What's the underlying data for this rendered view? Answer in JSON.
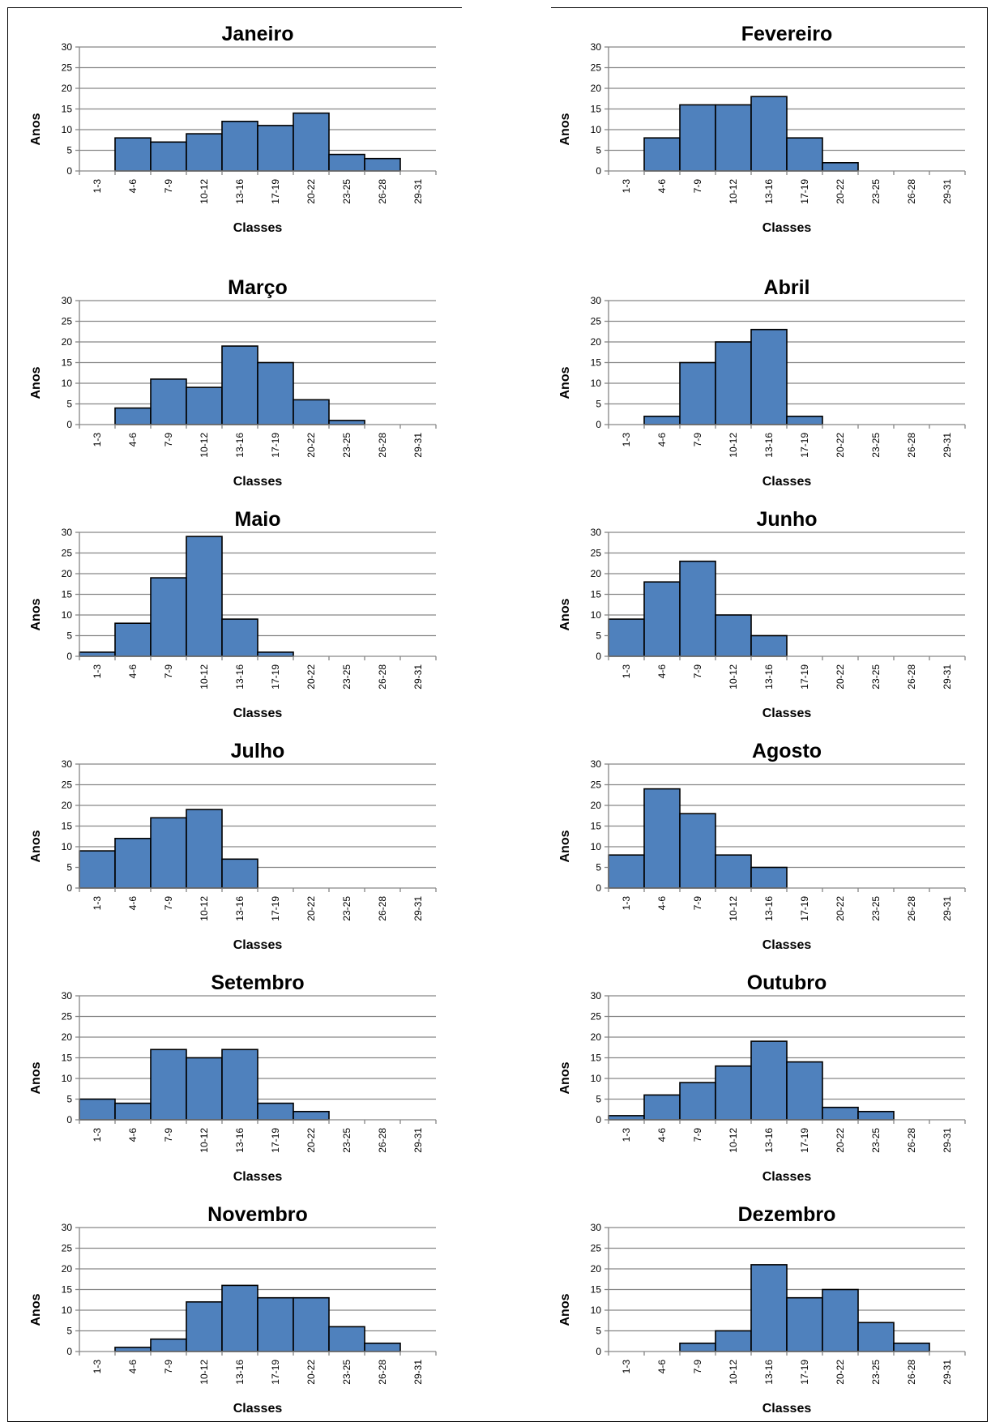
{
  "chart_data": [
    {
      "type": "bar",
      "title": "Janeiro",
      "xlabel": "Classes",
      "ylabel": "Anos",
      "ylim": [
        0,
        30
      ],
      "yticks": [
        0,
        5,
        10,
        15,
        20,
        25,
        30
      ],
      "categories": [
        "1-3",
        "4-6",
        "7-9",
        "10-12",
        "13-16",
        "17-19",
        "20-22",
        "23-25",
        "26-28",
        "29-31"
      ],
      "values": [
        0,
        8,
        7,
        9,
        12,
        11,
        14,
        4,
        3,
        0
      ],
      "grid": true,
      "bar_color": "#4f81bd"
    },
    {
      "type": "bar",
      "title": "Fevereiro",
      "xlabel": "Classes",
      "ylabel": "Anos",
      "ylim": [
        0,
        30
      ],
      "yticks": [
        0,
        5,
        10,
        15,
        20,
        25,
        30
      ],
      "categories": [
        "1-3",
        "4-6",
        "7-9",
        "10-12",
        "13-16",
        "17-19",
        "20-22",
        "23-25",
        "26-28",
        "29-31"
      ],
      "values": [
        0,
        8,
        16,
        16,
        18,
        8,
        2,
        0,
        0,
        0
      ],
      "grid": true,
      "bar_color": "#4f81bd"
    },
    {
      "type": "bar",
      "title": "Março",
      "xlabel": "Classes",
      "ylabel": "Anos",
      "ylim": [
        0,
        30
      ],
      "yticks": [
        0,
        5,
        10,
        15,
        20,
        25,
        30
      ],
      "categories": [
        "1-3",
        "4-6",
        "7-9",
        "10-12",
        "13-16",
        "17-19",
        "20-22",
        "23-25",
        "26-28",
        "29-31"
      ],
      "values": [
        0,
        4,
        11,
        9,
        19,
        15,
        6,
        1,
        0,
        0
      ],
      "grid": true,
      "bar_color": "#4f81bd"
    },
    {
      "type": "bar",
      "title": "Abril",
      "xlabel": "Classes",
      "ylabel": "Anos",
      "ylim": [
        0,
        30
      ],
      "yticks": [
        0,
        5,
        10,
        15,
        20,
        25,
        30
      ],
      "categories": [
        "1-3",
        "4-6",
        "7-9",
        "10-12",
        "13-16",
        "17-19",
        "20-22",
        "23-25",
        "26-28",
        "29-31"
      ],
      "values": [
        0,
        2,
        15,
        20,
        23,
        2,
        0,
        0,
        0,
        0
      ],
      "grid": true,
      "bar_color": "#4f81bd"
    },
    {
      "type": "bar",
      "title": "Maio",
      "xlabel": "Classes",
      "ylabel": "Anos",
      "ylim": [
        0,
        30
      ],
      "yticks": [
        0,
        5,
        10,
        15,
        20,
        25,
        30
      ],
      "categories": [
        "1-3",
        "4-6",
        "7-9",
        "10-12",
        "13-16",
        "17-19",
        "20-22",
        "23-25",
        "26-28",
        "29-31"
      ],
      "values": [
        1,
        8,
        19,
        29,
        9,
        1,
        0,
        0,
        0,
        0
      ],
      "grid": true,
      "bar_color": "#4f81bd"
    },
    {
      "type": "bar",
      "title": "Junho",
      "xlabel": "Classes",
      "ylabel": "Anos",
      "ylim": [
        0,
        30
      ],
      "yticks": [
        0,
        5,
        10,
        15,
        20,
        25,
        30
      ],
      "categories": [
        "1-3",
        "4-6",
        "7-9",
        "10-12",
        "13-16",
        "17-19",
        "20-22",
        "23-25",
        "26-28",
        "29-31"
      ],
      "values": [
        9,
        18,
        23,
        10,
        5,
        0,
        0,
        0,
        0,
        0
      ],
      "grid": true,
      "bar_color": "#4f81bd"
    },
    {
      "type": "bar",
      "title": "Julho",
      "xlabel": "Classes",
      "ylabel": "Anos",
      "ylim": [
        0,
        30
      ],
      "yticks": [
        0,
        5,
        10,
        15,
        20,
        25,
        30
      ],
      "categories": [
        "1-3",
        "4-6",
        "7-9",
        "10-12",
        "13-16",
        "17-19",
        "20-22",
        "23-25",
        "26-28",
        "29-31"
      ],
      "values": [
        9,
        12,
        17,
        19,
        7,
        0,
        0,
        0,
        0,
        0
      ],
      "grid": true,
      "bar_color": "#4f81bd"
    },
    {
      "type": "bar",
      "title": "Agosto",
      "xlabel": "Classes",
      "ylabel": "Anos",
      "ylim": [
        0,
        30
      ],
      "yticks": [
        0,
        5,
        10,
        15,
        20,
        25,
        30
      ],
      "categories": [
        "1-3",
        "4-6",
        "7-9",
        "10-12",
        "13-16",
        "17-19",
        "20-22",
        "23-25",
        "26-28",
        "29-31"
      ],
      "values": [
        8,
        24,
        18,
        8,
        5,
        0,
        0,
        0,
        0,
        0
      ],
      "grid": true,
      "bar_color": "#4f81bd"
    },
    {
      "type": "bar",
      "title": "Setembro",
      "xlabel": "Classes",
      "ylabel": "Anos",
      "ylim": [
        0,
        30
      ],
      "yticks": [
        0,
        5,
        10,
        15,
        20,
        25,
        30
      ],
      "categories": [
        "1-3",
        "4-6",
        "7-9",
        "10-12",
        "13-16",
        "17-19",
        "20-22",
        "23-25",
        "26-28",
        "29-31"
      ],
      "values": [
        5,
        4,
        17,
        15,
        17,
        4,
        2,
        0,
        0,
        0
      ],
      "grid": true,
      "bar_color": "#4f81bd"
    },
    {
      "type": "bar",
      "title": "Outubro",
      "xlabel": "Classes",
      "ylabel": "Anos",
      "ylim": [
        0,
        30
      ],
      "yticks": [
        0,
        5,
        10,
        15,
        20,
        25,
        30
      ],
      "categories": [
        "1-3",
        "4-6",
        "7-9",
        "10-12",
        "13-16",
        "17-19",
        "20-22",
        "23-25",
        "26-28",
        "29-31"
      ],
      "values": [
        1,
        6,
        9,
        13,
        19,
        14,
        3,
        2,
        0,
        0
      ],
      "grid": true,
      "bar_color": "#4f81bd"
    },
    {
      "type": "bar",
      "title": "Novembro",
      "xlabel": "Classes",
      "ylabel": "Anos",
      "ylim": [
        0,
        30
      ],
      "yticks": [
        0,
        5,
        10,
        15,
        20,
        25,
        30
      ],
      "categories": [
        "1-3",
        "4-6",
        "7-9",
        "10-12",
        "13-16",
        "17-19",
        "20-22",
        "23-25",
        "26-28",
        "29-31"
      ],
      "values": [
        0,
        1,
        3,
        12,
        16,
        13,
        13,
        6,
        2,
        0
      ],
      "grid": true,
      "bar_color": "#4f81bd"
    },
    {
      "type": "bar",
      "title": "Dezembro",
      "xlabel": "Classes",
      "ylabel": "Anos",
      "ylim": [
        0,
        30
      ],
      "yticks": [
        0,
        5,
        10,
        15,
        20,
        25,
        30
      ],
      "categories": [
        "1-3",
        "4-6",
        "7-9",
        "10-12",
        "13-16",
        "17-19",
        "20-22",
        "23-25",
        "26-28",
        "29-31"
      ],
      "values": [
        0,
        0,
        2,
        5,
        21,
        13,
        15,
        7,
        2,
        0
      ],
      "grid": true,
      "bar_color": "#4f81bd"
    }
  ]
}
